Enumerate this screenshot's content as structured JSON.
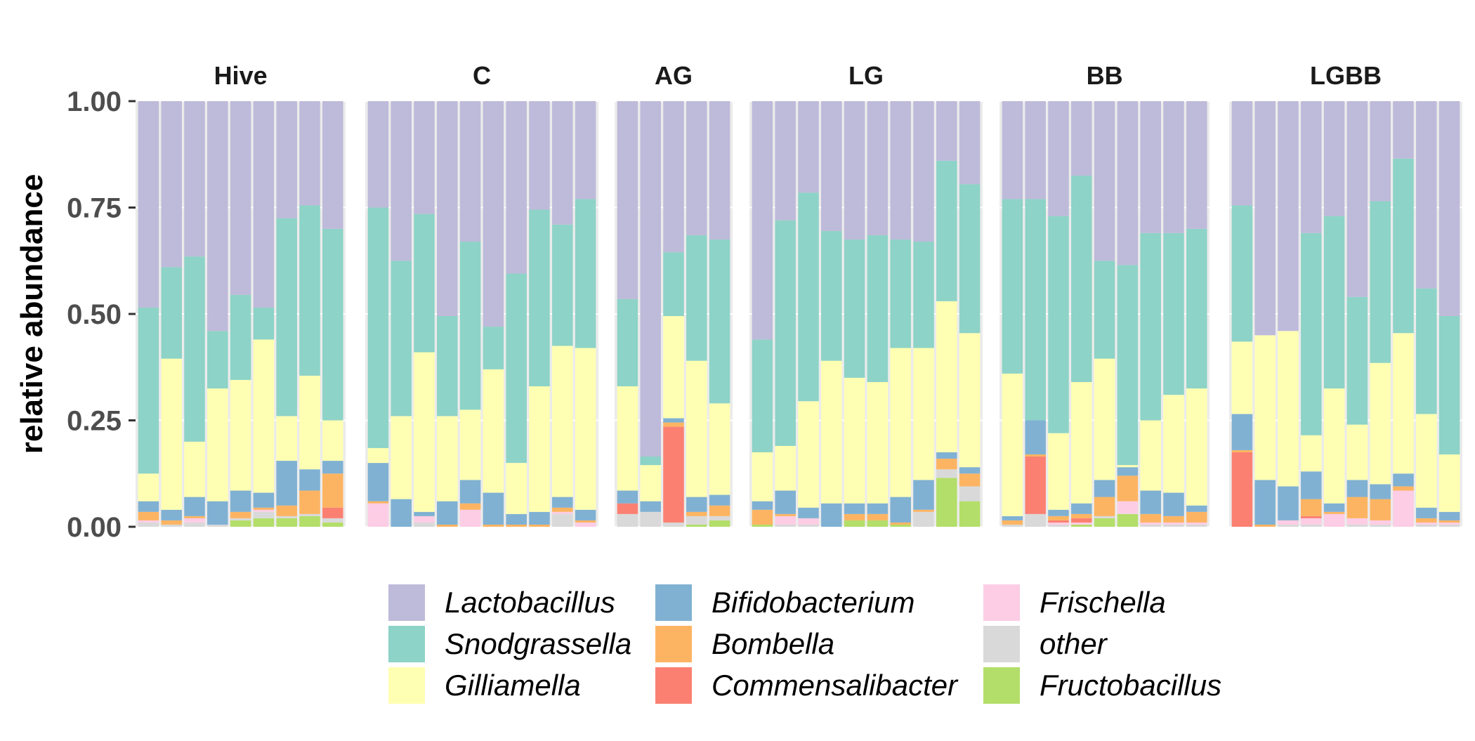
{
  "chart_data": {
    "type": "bar",
    "stacked": true,
    "ylabel": "relative abundance",
    "xlabel": "",
    "ylim": [
      0,
      1
    ],
    "yticks": [
      "0.00",
      "0.25",
      "0.50",
      "0.75",
      "1.00"
    ],
    "ytick_values": [
      0,
      0.25,
      0.5,
      0.75,
      1
    ],
    "grid": true,
    "legend_position": "bottom",
    "taxa": [
      {
        "name": "Lactobacillus",
        "color": "#bebada"
      },
      {
        "name": "Snodgrassella",
        "color": "#8dd3c7"
      },
      {
        "name": "Gilliamella",
        "color": "#ffffb3"
      },
      {
        "name": "Bifidobacterium",
        "color": "#80b1d3"
      },
      {
        "name": "Bombella",
        "color": "#fdb462"
      },
      {
        "name": "Commensalibacter",
        "color": "#fb8072"
      },
      {
        "name": "Frischella",
        "color": "#fccde5"
      },
      {
        "name": "other",
        "color": "#d9d9d9"
      },
      {
        "name": "Fructobacillus",
        "color": "#b3de69"
      }
    ],
    "stack_order_bottom_to_top": [
      "Fructobacillus",
      "other",
      "Frischella",
      "Commensalibacter",
      "Bombella",
      "Bifidobacterium",
      "Gilliamella",
      "Snodgrassella",
      "Lactobacillus"
    ],
    "facets": [
      {
        "title": "Hive",
        "samples": [
          {
            "Fructobacillus": 0,
            "other": 0.01,
            "Frischella": 0.005,
            "Commensalibacter": 0,
            "Bombella": 0.02,
            "Bifidobacterium": 0.025,
            "Gilliamella": 0.065,
            "Snodgrassella": 0.39,
            "Lactobacillus": 0.485
          },
          {
            "Fructobacillus": 0,
            "other": 0.005,
            "Frischella": 0,
            "Commensalibacter": 0,
            "Bombella": 0.01,
            "Bifidobacterium": 0.025,
            "Gilliamella": 0.355,
            "Snodgrassella": 0.215,
            "Lactobacillus": 0.39
          },
          {
            "Fructobacillus": 0,
            "other": 0.01,
            "Frischella": 0.01,
            "Commensalibacter": 0,
            "Bombella": 0.005,
            "Bifidobacterium": 0.045,
            "Gilliamella": 0.13,
            "Snodgrassella": 0.435,
            "Lactobacillus": 0.365
          },
          {
            "Fructobacillus": 0,
            "other": 0.005,
            "Frischella": 0,
            "Commensalibacter": 0,
            "Bombella": 0,
            "Bifidobacterium": 0.055,
            "Gilliamella": 0.265,
            "Snodgrassella": 0.135,
            "Lactobacillus": 0.54
          },
          {
            "Fructobacillus": 0.015,
            "other": 0.005,
            "Frischella": 0,
            "Commensalibacter": 0,
            "Bombella": 0.015,
            "Bifidobacterium": 0.05,
            "Gilliamella": 0.26,
            "Snodgrassella": 0.2,
            "Lactobacillus": 0.455
          },
          {
            "Fructobacillus": 0.02,
            "other": 0.015,
            "Frischella": 0.005,
            "Commensalibacter": 0,
            "Bombella": 0.005,
            "Bifidobacterium": 0.035,
            "Gilliamella": 0.36,
            "Snodgrassella": 0.075,
            "Lactobacillus": 0.485
          },
          {
            "Fructobacillus": 0.02,
            "other": 0.005,
            "Frischella": 0,
            "Commensalibacter": 0,
            "Bombella": 0.025,
            "Bifidobacterium": 0.105,
            "Gilliamella": 0.105,
            "Snodgrassella": 0.465,
            "Lactobacillus": 0.275
          },
          {
            "Fructobacillus": 0.025,
            "other": 0.005,
            "Frischella": 0,
            "Commensalibacter": 0,
            "Bombella": 0.055,
            "Bifidobacterium": 0.05,
            "Gilliamella": 0.22,
            "Snodgrassella": 0.4,
            "Lactobacillus": 0.245
          },
          {
            "Fructobacillus": 0.01,
            "other": 0.01,
            "Frischella": 0,
            "Commensalibacter": 0.025,
            "Bombella": 0.08,
            "Bifidobacterium": 0.03,
            "Gilliamella": 0.095,
            "Snodgrassella": 0.45,
            "Lactobacillus": 0.3
          }
        ]
      },
      {
        "title": "C",
        "samples": [
          {
            "Fructobacillus": 0,
            "other": 0,
            "Frischella": 0.055,
            "Commensalibacter": 0,
            "Bombella": 0.005,
            "Bifidobacterium": 0.09,
            "Gilliamella": 0.035,
            "Snodgrassella": 0.565,
            "Lactobacillus": 0.25
          },
          {
            "Fructobacillus": 0,
            "other": 0,
            "Frischella": 0,
            "Commensalibacter": 0,
            "Bombella": 0,
            "Bifidobacterium": 0.065,
            "Gilliamella": 0.195,
            "Snodgrassella": 0.365,
            "Lactobacillus": 0.375
          },
          {
            "Fructobacillus": 0,
            "other": 0.01,
            "Frischella": 0.015,
            "Commensalibacter": 0,
            "Bombella": 0,
            "Bifidobacterium": 0.01,
            "Gilliamella": 0.375,
            "Snodgrassella": 0.325,
            "Lactobacillus": 0.265
          },
          {
            "Fructobacillus": 0,
            "other": 0,
            "Frischella": 0,
            "Commensalibacter": 0,
            "Bombella": 0.005,
            "Bifidobacterium": 0.055,
            "Gilliamella": 0.2,
            "Snodgrassella": 0.235,
            "Lactobacillus": 0.505
          },
          {
            "Fructobacillus": 0,
            "other": 0,
            "Frischella": 0.04,
            "Commensalibacter": 0,
            "Bombella": 0.015,
            "Bifidobacterium": 0.055,
            "Gilliamella": 0.165,
            "Snodgrassella": 0.395,
            "Lactobacillus": 0.33
          },
          {
            "Fructobacillus": 0,
            "other": 0,
            "Frischella": 0,
            "Commensalibacter": 0,
            "Bombella": 0.005,
            "Bifidobacterium": 0.075,
            "Gilliamella": 0.29,
            "Snodgrassella": 0.1,
            "Lactobacillus": 0.53
          },
          {
            "Fructobacillus": 0,
            "other": 0,
            "Frischella": 0,
            "Commensalibacter": 0,
            "Bombella": 0.005,
            "Bifidobacterium": 0.025,
            "Gilliamella": 0.12,
            "Snodgrassella": 0.445,
            "Lactobacillus": 0.405
          },
          {
            "Fructobacillus": 0,
            "other": 0,
            "Frischella": 0,
            "Commensalibacter": 0,
            "Bombella": 0.005,
            "Bifidobacterium": 0.03,
            "Gilliamella": 0.295,
            "Snodgrassella": 0.415,
            "Lactobacillus": 0.255
          },
          {
            "Fructobacillus": 0,
            "other": 0.03,
            "Frischella": 0.005,
            "Commensalibacter": 0,
            "Bombella": 0.01,
            "Bifidobacterium": 0.025,
            "Gilliamella": 0.355,
            "Snodgrassella": 0.285,
            "Lactobacillus": 0.29
          },
          {
            "Fructobacillus": 0,
            "other": 0,
            "Frischella": 0.01,
            "Commensalibacter": 0,
            "Bombella": 0.005,
            "Bifidobacterium": 0.025,
            "Gilliamella": 0.38,
            "Snodgrassella": 0.35,
            "Lactobacillus": 0.23
          }
        ]
      },
      {
        "title": "AG",
        "samples": [
          {
            "Fructobacillus": 0,
            "other": 0.03,
            "Frischella": 0,
            "Commensalibacter": 0.025,
            "Bombella": 0,
            "Bifidobacterium": 0.03,
            "Gilliamella": 0.245,
            "Snodgrassella": 0.205,
            "Lactobacillus": 0.465
          },
          {
            "Fructobacillus": 0,
            "other": 0.035,
            "Frischella": 0,
            "Commensalibacter": 0,
            "Bombella": 0,
            "Bifidobacterium": 0.025,
            "Gilliamella": 0.085,
            "Snodgrassella": 0.02,
            "Lactobacillus": 0.835
          },
          {
            "Fructobacillus": 0,
            "other": 0.01,
            "Frischella": 0,
            "Commensalibacter": 0.225,
            "Bombella": 0.01,
            "Bifidobacterium": 0.01,
            "Gilliamella": 0.24,
            "Snodgrassella": 0.15,
            "Lactobacillus": 0.355
          },
          {
            "Fructobacillus": 0.005,
            "other": 0.02,
            "Frischella": 0,
            "Commensalibacter": 0,
            "Bombella": 0.01,
            "Bifidobacterium": 0.035,
            "Gilliamella": 0.32,
            "Snodgrassella": 0.295,
            "Lactobacillus": 0.315
          },
          {
            "Fructobacillus": 0.015,
            "other": 0.01,
            "Frischella": 0,
            "Commensalibacter": 0,
            "Bombella": 0.025,
            "Bifidobacterium": 0.025,
            "Gilliamella": 0.215,
            "Snodgrassella": 0.385,
            "Lactobacillus": 0.325
          }
        ]
      },
      {
        "title": "LG",
        "samples": [
          {
            "Fructobacillus": 0.005,
            "other": 0,
            "Frischella": 0,
            "Commensalibacter": 0,
            "Bombella": 0.035,
            "Bifidobacterium": 0.02,
            "Gilliamella": 0.115,
            "Snodgrassella": 0.265,
            "Lactobacillus": 0.56
          },
          {
            "Fructobacillus": 0,
            "other": 0.005,
            "Frischella": 0.02,
            "Commensalibacter": 0,
            "Bombella": 0.005,
            "Bifidobacterium": 0.055,
            "Gilliamella": 0.105,
            "Snodgrassella": 0.53,
            "Lactobacillus": 0.28
          },
          {
            "Fructobacillus": 0,
            "other": 0.005,
            "Frischella": 0.015,
            "Commensalibacter": 0,
            "Bombella": 0,
            "Bifidobacterium": 0.025,
            "Gilliamella": 0.25,
            "Snodgrassella": 0.49,
            "Lactobacillus": 0.215
          },
          {
            "Fructobacillus": 0,
            "other": 0,
            "Frischella": 0,
            "Commensalibacter": 0,
            "Bombella": 0,
            "Bifidobacterium": 0.055,
            "Gilliamella": 0.335,
            "Snodgrassella": 0.305,
            "Lactobacillus": 0.305
          },
          {
            "Fructobacillus": 0.015,
            "other": 0,
            "Frischella": 0,
            "Commensalibacter": 0,
            "Bombella": 0.015,
            "Bifidobacterium": 0.025,
            "Gilliamella": 0.295,
            "Snodgrassella": 0.325,
            "Lactobacillus": 0.325
          },
          {
            "Fructobacillus": 0.015,
            "other": 0,
            "Frischella": 0,
            "Commensalibacter": 0,
            "Bombella": 0.015,
            "Bifidobacterium": 0.025,
            "Gilliamella": 0.285,
            "Snodgrassella": 0.345,
            "Lactobacillus": 0.31
          },
          {
            "Fructobacillus": 0.005,
            "other": 0,
            "Frischella": 0,
            "Commensalibacter": 0,
            "Bombella": 0.005,
            "Bifidobacterium": 0.06,
            "Gilliamella": 0.35,
            "Snodgrassella": 0.255,
            "Lactobacillus": 0.325
          },
          {
            "Fructobacillus": 0,
            "other": 0.035,
            "Frischella": 0,
            "Commensalibacter": 0,
            "Bombella": 0.005,
            "Bifidobacterium": 0.07,
            "Gilliamella": 0.31,
            "Snodgrassella": 0.25,
            "Lactobacillus": 0.33
          },
          {
            "Fructobacillus": 0.115,
            "other": 0.02,
            "Frischella": 0,
            "Commensalibacter": 0,
            "Bombella": 0.025,
            "Bifidobacterium": 0.015,
            "Gilliamella": 0.355,
            "Snodgrassella": 0.33,
            "Lactobacillus": 0.14
          },
          {
            "Fructobacillus": 0.06,
            "other": 0.035,
            "Frischella": 0,
            "Commensalibacter": 0,
            "Bombella": 0.03,
            "Bifidobacterium": 0.015,
            "Gilliamella": 0.315,
            "Snodgrassella": 0.35,
            "Lactobacillus": 0.195
          }
        ]
      },
      {
        "title": "BB",
        "samples": [
          {
            "Fructobacillus": 0,
            "other": 0.005,
            "Frischella": 0,
            "Commensalibacter": 0,
            "Bombella": 0.01,
            "Bifidobacterium": 0.01,
            "Gilliamella": 0.335,
            "Snodgrassella": 0.41,
            "Lactobacillus": 0.23
          },
          {
            "Fructobacillus": 0,
            "other": 0.03,
            "Frischella": 0,
            "Commensalibacter": 0.135,
            "Bombella": 0.005,
            "Bifidobacterium": 0.08,
            "Gilliamella": 0,
            "Snodgrassella": 0.52,
            "Lactobacillus": 0.23
          },
          {
            "Fructobacillus": 0,
            "other": 0.005,
            "Frischella": 0.005,
            "Commensalibacter": 0.005,
            "Bombella": 0.01,
            "Bifidobacterium": 0.015,
            "Gilliamella": 0.18,
            "Snodgrassella": 0.51,
            "Lactobacillus": 0.27
          },
          {
            "Fructobacillus": 0.005,
            "other": 0,
            "Frischella": 0.005,
            "Commensalibacter": 0.01,
            "Bombella": 0.01,
            "Bifidobacterium": 0.025,
            "Gilliamella": 0.285,
            "Snodgrassella": 0.485,
            "Lactobacillus": 0.175
          },
          {
            "Fructobacillus": 0.02,
            "other": 0.005,
            "Frischella": 0,
            "Commensalibacter": 0,
            "Bombella": 0.045,
            "Bifidobacterium": 0.04,
            "Gilliamella": 0.285,
            "Snodgrassella": 0.23,
            "Lactobacillus": 0.375
          },
          {
            "Fructobacillus": 0.03,
            "other": 0,
            "Frischella": 0.03,
            "Commensalibacter": 0,
            "Bombella": 0.06,
            "Bifidobacterium": 0.02,
            "Gilliamella": 0.005,
            "Snodgrassella": 0.47,
            "Lactobacillus": 0.385
          },
          {
            "Fructobacillus": 0,
            "other": 0.005,
            "Frischella": 0.005,
            "Commensalibacter": 0,
            "Bombella": 0.02,
            "Bifidobacterium": 0.055,
            "Gilliamella": 0.165,
            "Snodgrassella": 0.44,
            "Lactobacillus": 0.31
          },
          {
            "Fructobacillus": 0,
            "other": 0.005,
            "Frischella": 0.005,
            "Commensalibacter": 0,
            "Bombella": 0.015,
            "Bifidobacterium": 0.055,
            "Gilliamella": 0.23,
            "Snodgrassella": 0.38,
            "Lactobacillus": 0.31
          },
          {
            "Fructobacillus": 0,
            "other": 0.005,
            "Frischella": 0.005,
            "Commensalibacter": 0,
            "Bombella": 0.025,
            "Bifidobacterium": 0.015,
            "Gilliamella": 0.275,
            "Snodgrassella": 0.375,
            "Lactobacillus": 0.3
          }
        ]
      },
      {
        "title": "LGBB",
        "samples": [
          {
            "Fructobacillus": 0,
            "other": 0,
            "Frischella": 0,
            "Commensalibacter": 0.175,
            "Bombella": 0.005,
            "Bifidobacterium": 0.085,
            "Gilliamella": 0.17,
            "Snodgrassella": 0.32,
            "Lactobacillus": 0.245
          },
          {
            "Fructobacillus": 0,
            "other": 0,
            "Frischella": 0,
            "Commensalibacter": 0,
            "Bombella": 0.005,
            "Bifidobacterium": 0.105,
            "Gilliamella": 0.34,
            "Snodgrassella": 0,
            "Lactobacillus": 0.55
          },
          {
            "Fructobacillus": 0,
            "other": 0.005,
            "Frischella": 0.01,
            "Commensalibacter": 0,
            "Bombella": 0,
            "Bifidobacterium": 0.08,
            "Gilliamella": 0.365,
            "Snodgrassella": 0,
            "Lactobacillus": 0.54
          },
          {
            "Fructobacillus": 0,
            "other": 0.005,
            "Frischella": 0.015,
            "Commensalibacter": 0.005,
            "Bombella": 0.04,
            "Bifidobacterium": 0.065,
            "Gilliamella": 0.085,
            "Snodgrassella": 0.475,
            "Lactobacillus": 0.31
          },
          {
            "Fructobacillus": 0,
            "other": 0,
            "Frischella": 0.03,
            "Commensalibacter": 0,
            "Bombella": 0.005,
            "Bifidobacterium": 0.02,
            "Gilliamella": 0.27,
            "Snodgrassella": 0.405,
            "Lactobacillus": 0.27
          },
          {
            "Fructobacillus": 0,
            "other": 0.005,
            "Frischella": 0.015,
            "Commensalibacter": 0,
            "Bombella": 0.05,
            "Bifidobacterium": 0.04,
            "Gilliamella": 0.13,
            "Snodgrassella": 0.3,
            "Lactobacillus": 0.46
          },
          {
            "Fructobacillus": 0,
            "other": 0.005,
            "Frischella": 0.01,
            "Commensalibacter": 0,
            "Bombella": 0.05,
            "Bifidobacterium": 0.035,
            "Gilliamella": 0.285,
            "Snodgrassella": 0.38,
            "Lactobacillus": 0.235
          },
          {
            "Fructobacillus": 0,
            "other": 0,
            "Frischella": 0.085,
            "Commensalibacter": 0,
            "Bombella": 0.01,
            "Bifidobacterium": 0.03,
            "Gilliamella": 0.33,
            "Snodgrassella": 0.41,
            "Lactobacillus": 0.135
          },
          {
            "Fructobacillus": 0,
            "other": 0.005,
            "Frischella": 0.005,
            "Commensalibacter": 0,
            "Bombella": 0.01,
            "Bifidobacterium": 0.025,
            "Gilliamella": 0.22,
            "Snodgrassella": 0.295,
            "Lactobacillus": 0.44
          },
          {
            "Fructobacillus": 0,
            "other": 0.005,
            "Frischella": 0.005,
            "Commensalibacter": 0,
            "Bombella": 0.005,
            "Bifidobacterium": 0.02,
            "Gilliamella": 0.135,
            "Snodgrassella": 0.325,
            "Lactobacillus": 0.505
          }
        ]
      }
    ]
  }
}
